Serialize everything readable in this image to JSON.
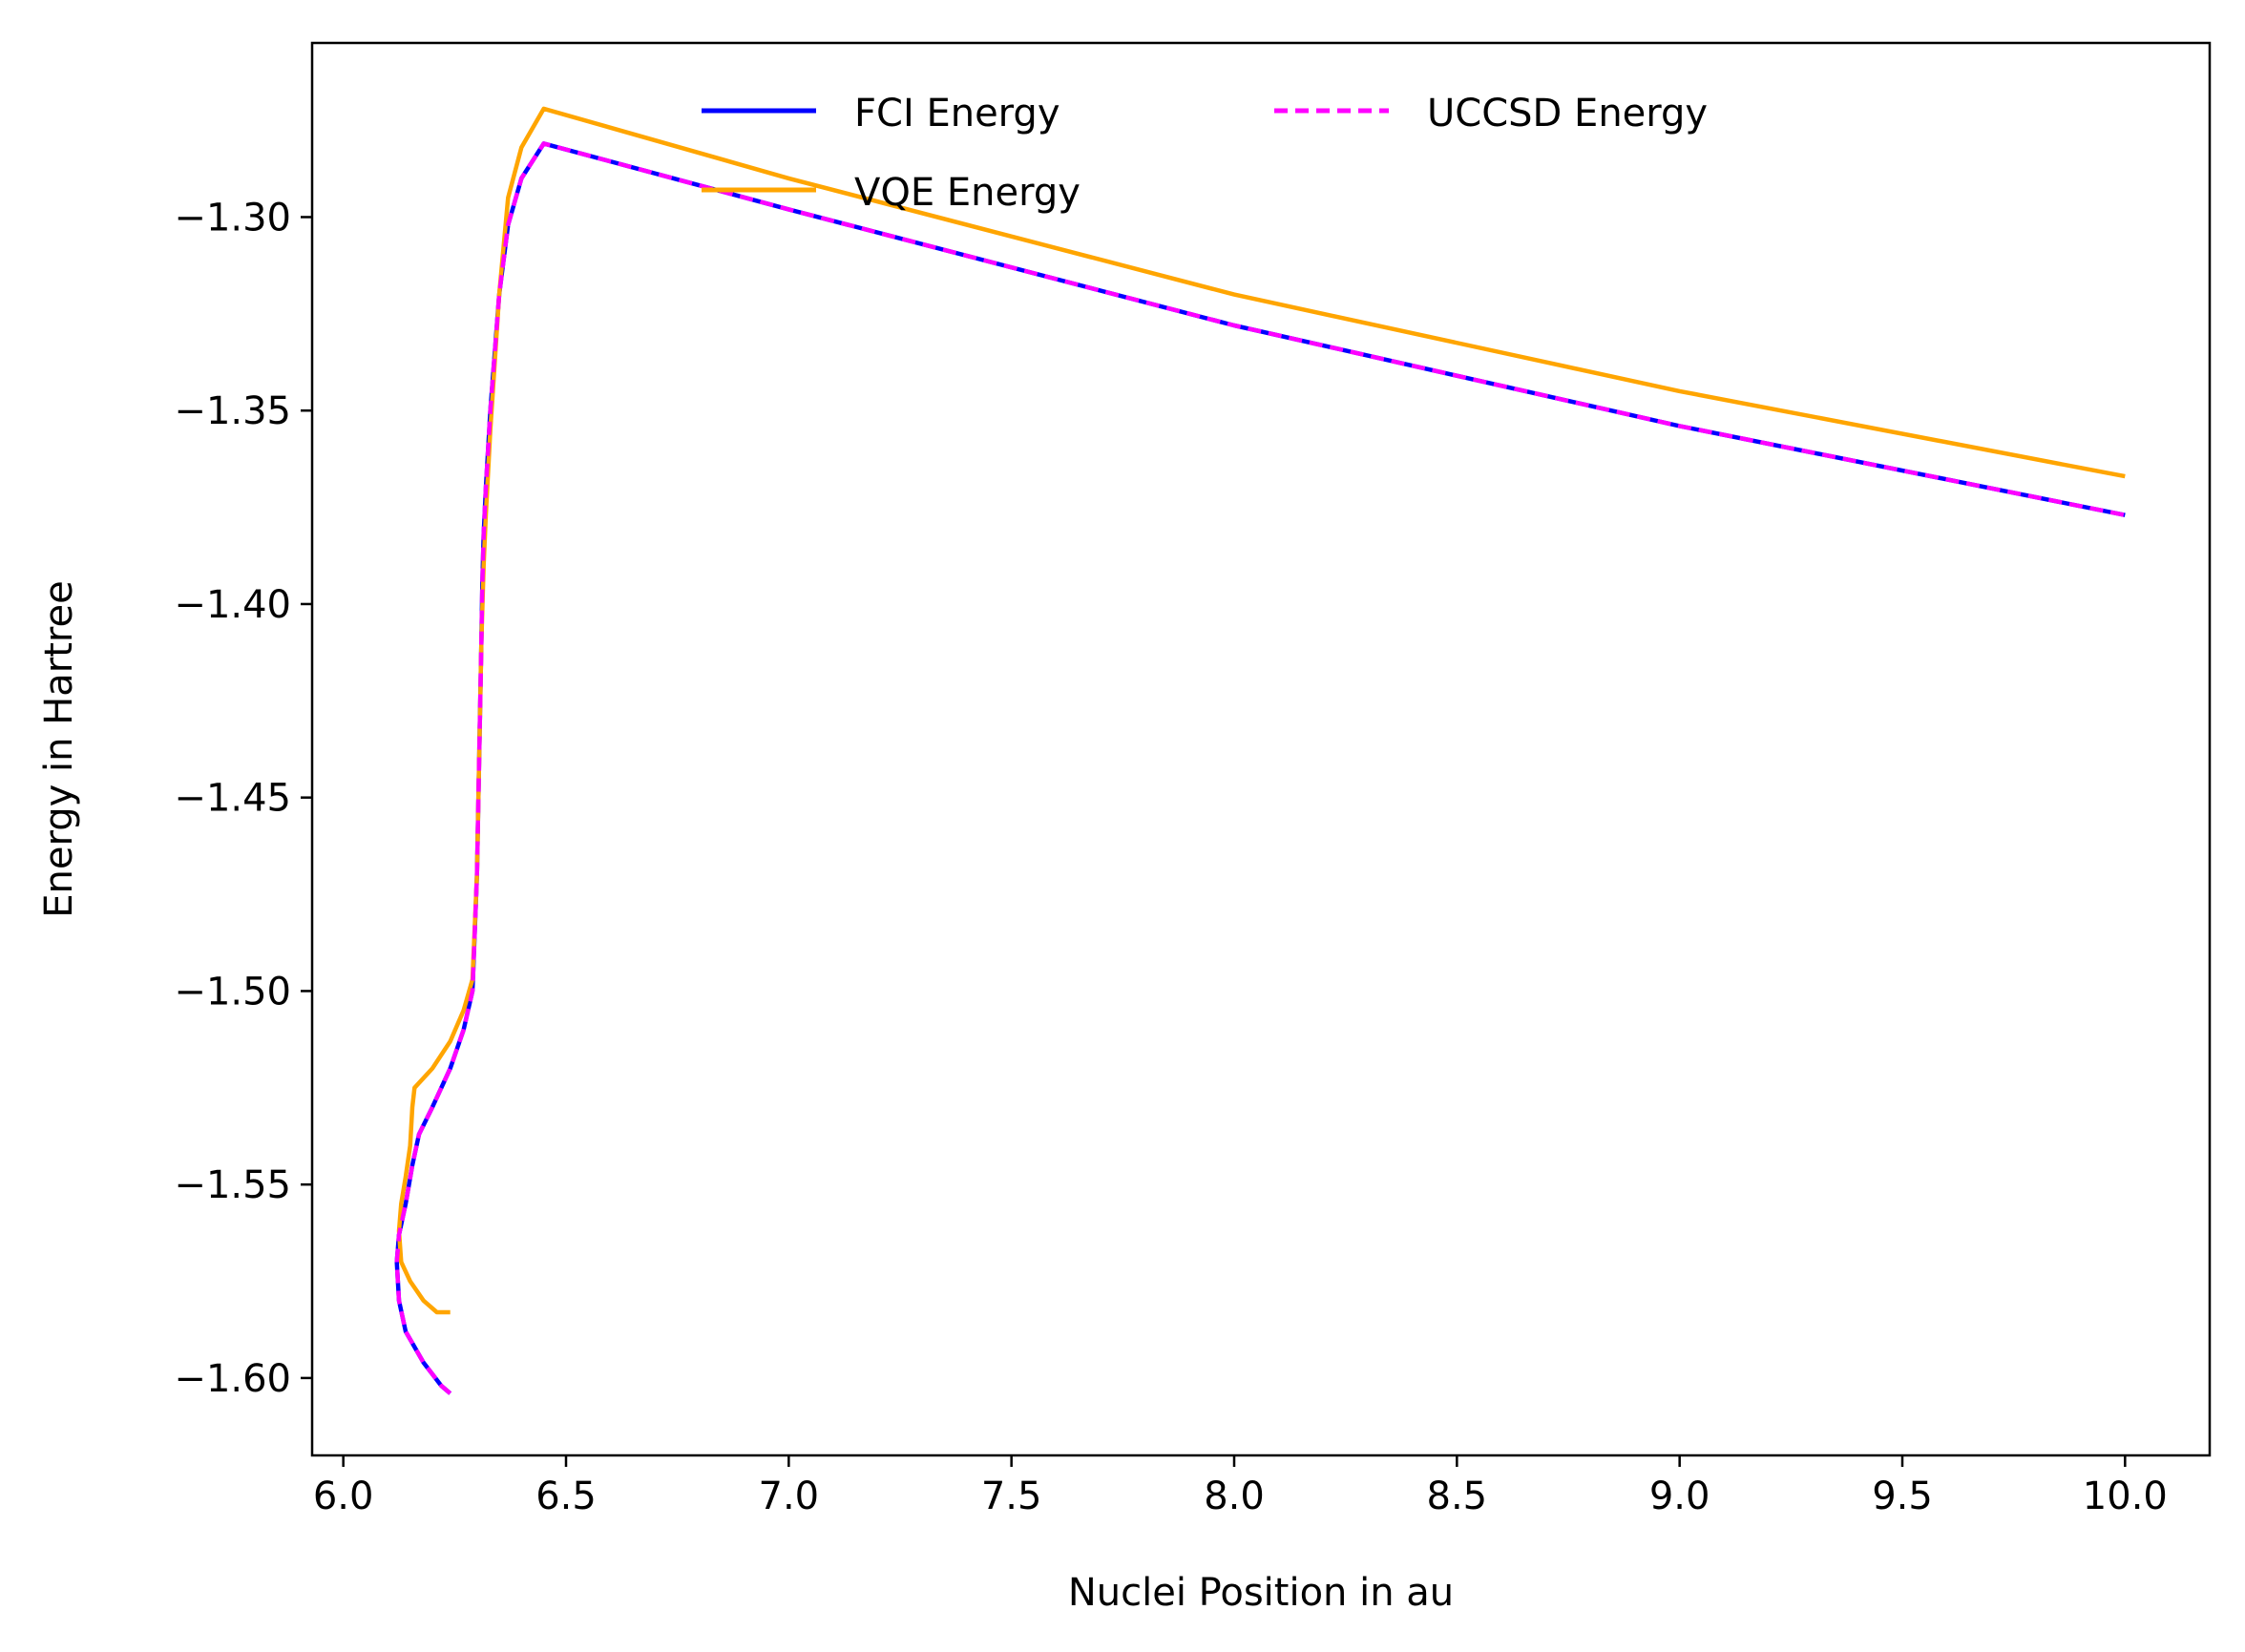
{
  "chart_data": {
    "type": "line",
    "title": "",
    "xlabel": "Nuclei Position in au",
    "ylabel": "Energy in Hartree",
    "xlim": [
      5.93,
      10.19
    ],
    "ylim": [
      -1.62,
      -1.255
    ],
    "xticks": [
      6.0,
      6.5,
      7.0,
      7.5,
      8.0,
      8.5,
      9.0,
      9.5,
      10.0
    ],
    "xtick_labels": [
      "6.0",
      "6.5",
      "7.0",
      "7.5",
      "8.0",
      "8.5",
      "9.0",
      "9.5",
      "10.0"
    ],
    "yticks": [
      -1.3,
      -1.35,
      -1.4,
      -1.45,
      -1.5,
      -1.55,
      -1.6
    ],
    "ytick_labels": [
      "−1.30",
      "−1.35",
      "−1.40",
      "−1.45",
      "−1.50",
      "−1.55",
      "−1.60"
    ],
    "grid": false,
    "legend_position": "top-center",
    "series": [
      {
        "name": "FCI Energy",
        "color": "#0000ff",
        "style": "solid",
        "x": [
          6.24,
          6.22,
          6.18,
          6.14,
          6.125,
          6.12,
          6.125,
          6.14,
          6.155,
          6.17,
          6.2,
          6.24,
          6.27,
          6.29,
          6.3,
          6.305,
          6.31,
          6.312,
          6.315,
          6.32,
          6.33,
          6.35,
          6.37,
          6.4,
          6.45,
          7.0,
          8.0,
          9.0,
          10.0
        ],
        "y": [
          -1.604,
          -1.602,
          -1.596,
          -1.588,
          -1.58,
          -1.57,
          -1.563,
          -1.555,
          -1.545,
          -1.537,
          -1.53,
          -1.52,
          -1.51,
          -1.5,
          -1.47,
          -1.44,
          -1.41,
          -1.395,
          -1.382,
          -1.37,
          -1.35,
          -1.32,
          -1.302,
          -1.29,
          -1.281,
          -1.298,
          -1.328,
          -1.354,
          -1.377
        ]
      },
      {
        "name": "UCCSD Energy",
        "color": "#ff00ff",
        "style": "dashed",
        "x": [
          6.24,
          6.22,
          6.18,
          6.14,
          6.125,
          6.12,
          6.125,
          6.14,
          6.155,
          6.17,
          6.2,
          6.24,
          6.27,
          6.29,
          6.3,
          6.305,
          6.31,
          6.312,
          6.315,
          6.32,
          6.33,
          6.35,
          6.37,
          6.4,
          6.45,
          7.0,
          8.0,
          9.0,
          10.0
        ],
        "y": [
          -1.604,
          -1.602,
          -1.596,
          -1.588,
          -1.58,
          -1.57,
          -1.563,
          -1.555,
          -1.545,
          -1.537,
          -1.53,
          -1.52,
          -1.51,
          -1.5,
          -1.47,
          -1.44,
          -1.41,
          -1.395,
          -1.382,
          -1.37,
          -1.35,
          -1.32,
          -1.302,
          -1.29,
          -1.281,
          -1.298,
          -1.328,
          -1.354,
          -1.377
        ]
      },
      {
        "name": "VQE Energy",
        "color": "#ffa500",
        "style": "solid",
        "x": [
          6.24,
          6.21,
          6.18,
          6.15,
          6.13,
          6.125,
          6.13,
          6.14,
          6.15,
          6.155,
          6.16,
          6.2,
          6.24,
          6.27,
          6.29,
          6.3,
          6.305,
          6.31,
          6.315,
          6.32,
          6.33,
          6.35,
          6.37,
          6.4,
          6.45,
          7.0,
          8.0,
          9.0,
          10.0
        ],
        "y": [
          -1.583,
          -1.583,
          -1.58,
          -1.575,
          -1.57,
          -1.562,
          -1.555,
          -1.548,
          -1.54,
          -1.53,
          -1.525,
          -1.52,
          -1.513,
          -1.505,
          -1.497,
          -1.47,
          -1.44,
          -1.41,
          -1.39,
          -1.377,
          -1.355,
          -1.32,
          -1.295,
          -1.282,
          -1.272,
          -1.29,
          -1.32,
          -1.345,
          -1.367
        ]
      }
    ]
  }
}
